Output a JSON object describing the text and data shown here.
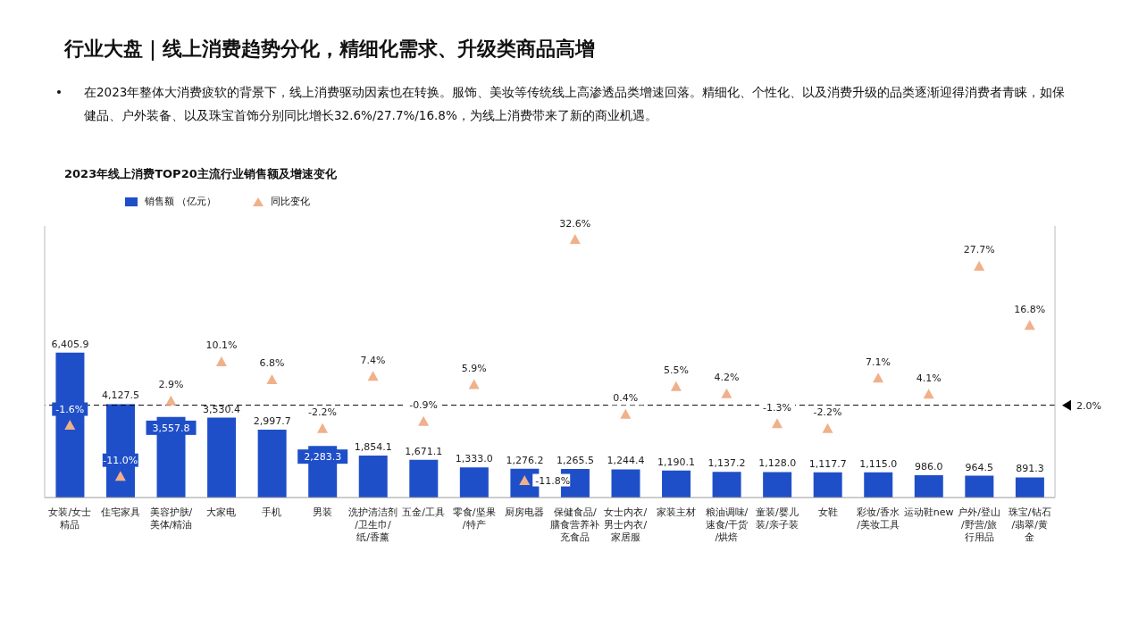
{
  "chart_data": {
    "type": "bar",
    "title": "行业大盘｜线上消费趋势分化，精细化需求、升级类商品高增",
    "subtitle": "2023年线上消费TOP20主流行业销售额及增速变化",
    "annotations": [
      "在2023年整体大消费疲软的背景下，线上消费驱动因素也在转换。服饰、美妆等传统线上高渗透品类增速回落。精细化、个性化、以及消费升级的品类逐渐迎得消费者青睐，如保健品、户外装备、以及珠宝首饰分别同比增长32.6%/27.7%/16.8%，为线上消费带来了新的商业机遇。"
    ],
    "categories": [
      "女装/女士精品",
      "住宅家具",
      "美容护肤/美体/精油",
      "大家电",
      "手机",
      "男装",
      "洗护清洁剂/卫生巾/纸/香薰",
      "五金/工具",
      "零食/坚果/特产",
      "厨房电器",
      "保健食品/膳食营养补充食品",
      "女士内衣/男士内衣/家居服",
      "家装主材",
      "粮油调味/速食/干货/烘焙",
      "童装/婴儿装/亲子装",
      "女鞋",
      "彩妆/香水/美妆工具",
      "运动鞋new",
      "户外/登山/野营/旅行用品",
      "珠宝/钻石/翡翠/黄金"
    ],
    "series": [
      {
        "name": "销售额 （亿元）",
        "color": "#1f4fc8",
        "values": [
          6405.9,
          4127.5,
          3557.8,
          3530.4,
          2997.7,
          2283.3,
          1854.1,
          1671.1,
          1333.0,
          1276.2,
          1265.5,
          1244.4,
          1190.1,
          1137.2,
          1128.0,
          1117.7,
          1115.0,
          986.0,
          964.5,
          891.3
        ],
        "value_labels": [
          "6,405.9",
          "4,127.5",
          "3,557.8",
          "3,530.4",
          "2,997.7",
          "2,283.3",
          "1,854.1",
          "1,671.1",
          "1,333.0",
          "1,276.2",
          "1,265.5",
          "1,244.4",
          "1,190.1",
          "1,137.2",
          "1,128.0",
          "1,117.7",
          "1,115.0",
          "986.0",
          "964.5",
          "891.3"
        ]
      },
      {
        "name": "同比变化",
        "type": "scatter",
        "axis": "y2",
        "color": "#f0b08a",
        "values": [
          -1.6,
          -11.0,
          2.9,
          10.1,
          6.8,
          -2.2,
          7.4,
          -0.9,
          5.9,
          -11.8,
          32.6,
          0.4,
          5.5,
          4.2,
          -1.3,
          -2.2,
          7.1,
          4.1,
          27.7,
          16.8
        ],
        "value_labels": [
          "-1.6%",
          "-11.0%",
          "2.9%",
          "10.1%",
          "6.8%",
          "-2.2%",
          "7.4%",
          "-0.9%",
          "5.9%",
          "-11.8%",
          "32.6%",
          "0.4%",
          "5.5%",
          "4.2%",
          "-1.3%",
          "-2.2%",
          "7.1%",
          "4.1%",
          "27.7%",
          "16.8%"
        ]
      }
    ],
    "marker": "triangle",
    "ylim": [
      0,
      12000
    ],
    "y2lim": [
      -15,
      35
    ],
    "tick_labels": "x",
    "legend": "top left",
    "ref_lines": [
      {
        "axis": "y2",
        "value": 2.0,
        "label": "2.0%",
        "line_style": "dashed",
        "color": "#000000"
      }
    ]
  }
}
